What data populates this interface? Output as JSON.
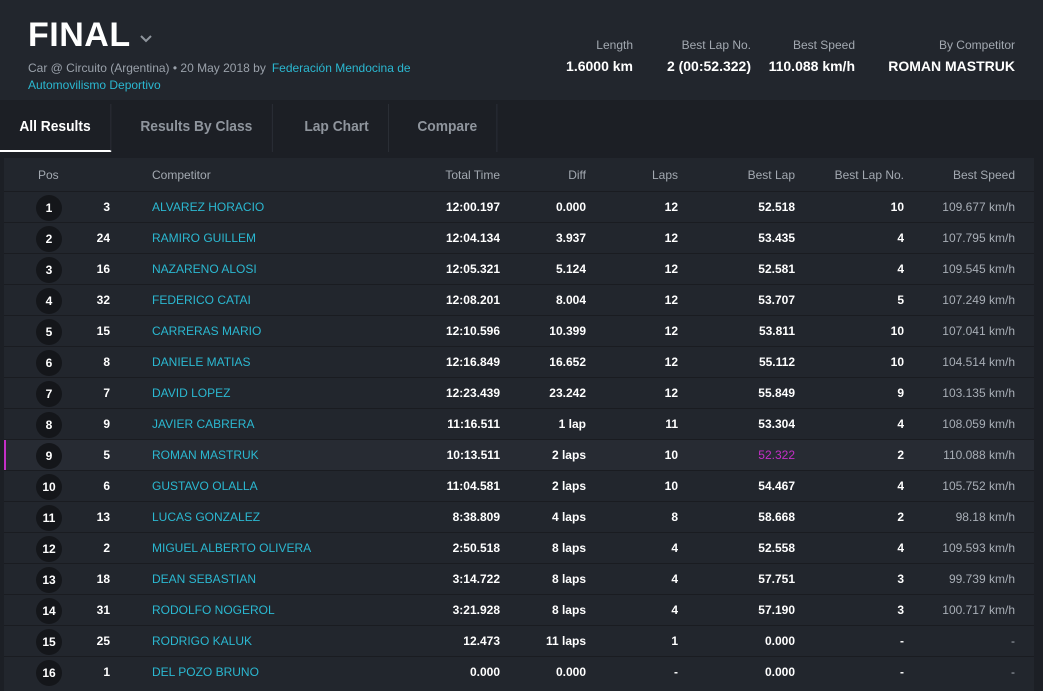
{
  "header": {
    "title": "FINAL",
    "subtitle_prefix": "Car @ Circuito (Argentina) • 20 May 2018 by",
    "organizer": "Federación Mendocina de Automovilismo Deportivo",
    "stats": {
      "length_label": "Length",
      "length_value": "1.6000 km",
      "best_lap_no_label": "Best Lap No.",
      "best_lap_no_value": "2 (00:52.322)",
      "best_speed_label": "Best Speed",
      "best_speed_value": "110.088 km/h",
      "by_competitor_label": "By Competitor",
      "by_competitor_value": "ROMAN MASTRUK"
    }
  },
  "tabs": [
    "All Results",
    "Results By Class",
    "Lap Chart",
    "Compare"
  ],
  "table": {
    "headers": {
      "pos": "Pos",
      "competitor": "Competitor",
      "total_time": "Total Time",
      "diff": "Diff",
      "laps": "Laps",
      "best_lap": "Best Lap",
      "best_lap_no": "Best Lap No.",
      "best_speed": "Best Speed"
    },
    "rows": [
      {
        "pos": "1",
        "num": "3",
        "competitor": "ALVAREZ HORACIO",
        "total_time": "12:00.197",
        "diff": "0.000",
        "laps": "12",
        "best_lap": "52.518",
        "best_lap_no": "10",
        "best_speed": "109.677 km/h"
      },
      {
        "pos": "2",
        "num": "24",
        "competitor": "RAMIRO GUILLEM",
        "total_time": "12:04.134",
        "diff": "3.937",
        "laps": "12",
        "best_lap": "53.435",
        "best_lap_no": "4",
        "best_speed": "107.795 km/h"
      },
      {
        "pos": "3",
        "num": "16",
        "competitor": "NAZARENO ALOSI",
        "total_time": "12:05.321",
        "diff": "5.124",
        "laps": "12",
        "best_lap": "52.581",
        "best_lap_no": "4",
        "best_speed": "109.545 km/h"
      },
      {
        "pos": "4",
        "num": "32",
        "competitor": "FEDERICO CATAI",
        "total_time": "12:08.201",
        "diff": "8.004",
        "laps": "12",
        "best_lap": "53.707",
        "best_lap_no": "5",
        "best_speed": "107.249 km/h"
      },
      {
        "pos": "5",
        "num": "15",
        "competitor": "CARRERAS MARIO",
        "total_time": "12:10.596",
        "diff": "10.399",
        "laps": "12",
        "best_lap": "53.811",
        "best_lap_no": "10",
        "best_speed": "107.041 km/h"
      },
      {
        "pos": "6",
        "num": "8",
        "competitor": "DANIELE MATIAS",
        "total_time": "12:16.849",
        "diff": "16.652",
        "laps": "12",
        "best_lap": "55.112",
        "best_lap_no": "10",
        "best_speed": "104.514 km/h"
      },
      {
        "pos": "7",
        "num": "7",
        "competitor": "DAVID LOPEZ",
        "total_time": "12:23.439",
        "diff": "23.242",
        "laps": "12",
        "best_lap": "55.849",
        "best_lap_no": "9",
        "best_speed": "103.135 km/h"
      },
      {
        "pos": "8",
        "num": "9",
        "competitor": "JAVIER CABRERA",
        "total_time": "11:16.511",
        "diff": "1 lap",
        "laps": "11",
        "best_lap": "53.304",
        "best_lap_no": "4",
        "best_speed": "108.059 km/h"
      },
      {
        "pos": "9",
        "num": "5",
        "competitor": "ROMAN MASTRUK",
        "total_time": "10:13.511",
        "diff": "2 laps",
        "laps": "10",
        "best_lap": "52.322",
        "best_lap_no": "2",
        "best_speed": "110.088 km/h",
        "highlight": true
      },
      {
        "pos": "10",
        "num": "6",
        "competitor": "GUSTAVO OLALLA",
        "total_time": "11:04.581",
        "diff": "2 laps",
        "laps": "10",
        "best_lap": "54.467",
        "best_lap_no": "4",
        "best_speed": "105.752 km/h"
      },
      {
        "pos": "11",
        "num": "13",
        "competitor": "LUCAS GONZALEZ",
        "total_time": "8:38.809",
        "diff": "4 laps",
        "laps": "8",
        "best_lap": "58.668",
        "best_lap_no": "2",
        "best_speed": "98.18 km/h"
      },
      {
        "pos": "12",
        "num": "2",
        "competitor": "MIGUEL ALBERTO OLIVERA",
        "total_time": "2:50.518",
        "diff": "8 laps",
        "laps": "4",
        "best_lap": "52.558",
        "best_lap_no": "4",
        "best_speed": "109.593 km/h"
      },
      {
        "pos": "13",
        "num": "18",
        "competitor": "DEAN SEBASTIAN",
        "total_time": "3:14.722",
        "diff": "8 laps",
        "laps": "4",
        "best_lap": "57.751",
        "best_lap_no": "3",
        "best_speed": "99.739 km/h"
      },
      {
        "pos": "14",
        "num": "31",
        "competitor": "RODOLFO NOGEROL",
        "total_time": "3:21.928",
        "diff": "8 laps",
        "laps": "4",
        "best_lap": "57.190",
        "best_lap_no": "3",
        "best_speed": "100.717 km/h"
      },
      {
        "pos": "15",
        "num": "25",
        "competitor": "RODRIGO KALUK",
        "total_time": "12.473",
        "diff": "11 laps",
        "laps": "1",
        "best_lap": "0.000",
        "best_lap_no": "-",
        "best_speed": "-"
      },
      {
        "pos": "16",
        "num": "1",
        "competitor": "DEL POZO BRUNO",
        "total_time": "0.000",
        "diff": "0.000",
        "laps": "-",
        "best_lap": "0.000",
        "best_lap_no": "-",
        "best_speed": "-"
      }
    ]
  },
  "colors": {
    "accent": "#2bb8d1",
    "highlight": "#c42fc7",
    "background": "#1c1f25"
  }
}
